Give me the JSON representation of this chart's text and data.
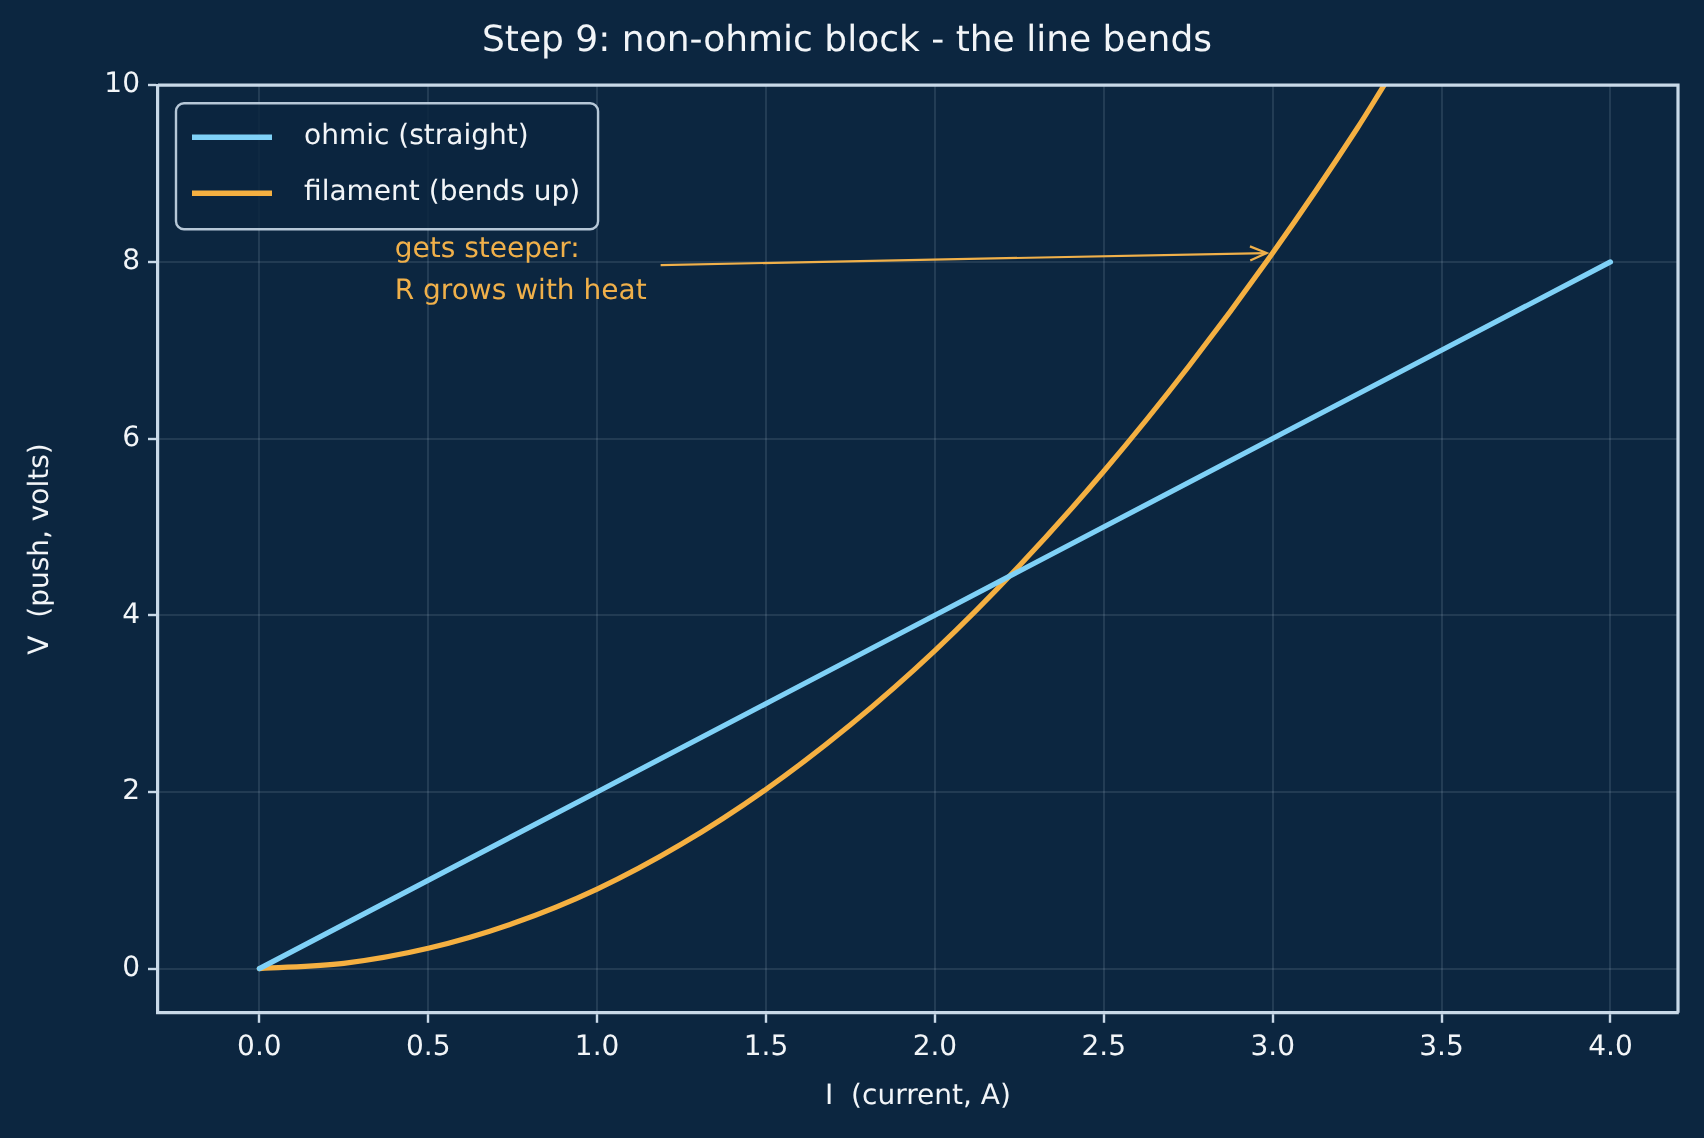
{
  "chart_data": {
    "type": "line",
    "title": "Step 9: non-ohmic block - the line bends",
    "xlabel": "I  (current, A)",
    "ylabel": "V  (push, volts)",
    "series": [
      {
        "name": "ohmic (straight)",
        "color": "#7fd1f7",
        "x": [
          0,
          1,
          2,
          3,
          4
        ],
        "values": [
          0,
          2,
          4,
          6,
          8
        ]
      },
      {
        "name": "filament (bends up)",
        "color": "#f5b041",
        "x": [
          0,
          0.25,
          0.5,
          0.75,
          1,
          1.25,
          1.5,
          1.75,
          2,
          2.25,
          2.5,
          2.75,
          3,
          3.25,
          3.33
        ],
        "values": [
          0,
          0.06,
          0.23,
          0.51,
          0.9,
          1.41,
          2.03,
          2.76,
          3.6,
          4.56,
          5.63,
          6.81,
          8.1,
          9.51,
          10.0
        ]
      }
    ],
    "xlim": [
      -0.3,
      4.2
    ],
    "ylim": [
      -0.5,
      10
    ],
    "xticks": [
      {
        "value": 0,
        "label": "0.0"
      },
      0.5,
      {
        "value": 1,
        "label": "1.0"
      },
      1.5,
      {
        "value": 2,
        "label": "2.0"
      },
      2.5,
      {
        "value": 3,
        "label": "3.0"
      },
      3.5,
      {
        "value": 4,
        "label": "4.0"
      }
    ],
    "yticks": [
      0,
      2,
      4,
      6,
      8,
      10
    ],
    "annotations": [
      {
        "text": "gets steeper:\nR grows with heat",
        "x": 3.0,
        "y": 8.1
      }
    ],
    "grid": true,
    "legend": "top left"
  }
}
